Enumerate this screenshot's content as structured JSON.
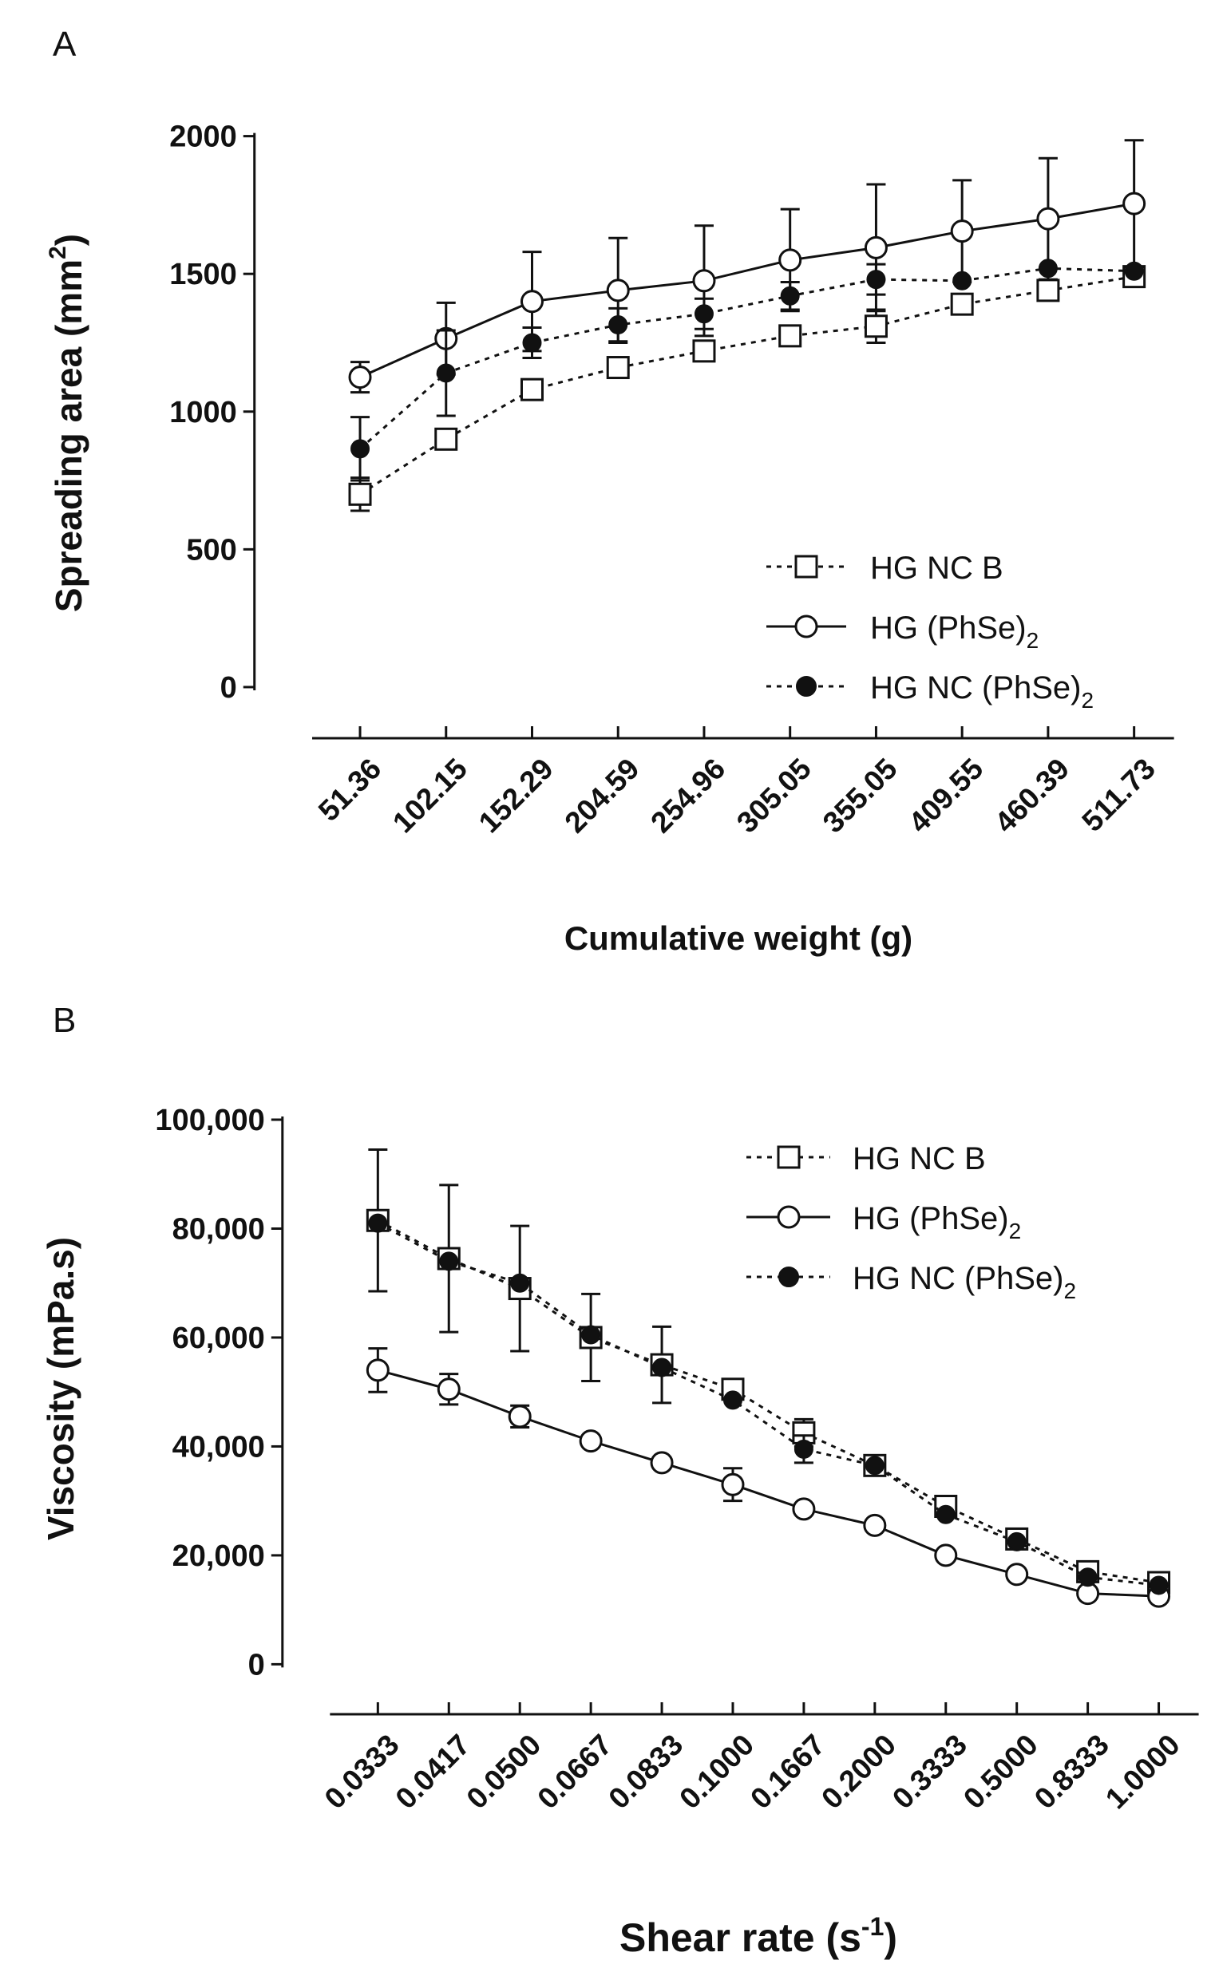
{
  "colors": {
    "ink": "#111111",
    "background": "#ffffff",
    "open_marker": "#ffffff",
    "filled_marker": "#111111"
  },
  "chart_data": [
    {
      "panel": "A",
      "type": "line",
      "title": "",
      "xlabel": "Cumulative weight (g)",
      "ylabel_main": "Spreading area (mm",
      "ylabel_sup": "2",
      "ylabel_end": ")",
      "categories": [
        "51.36",
        "102.15",
        "152.29",
        "204.59",
        "254.96",
        "305.05",
        "355.05",
        "409.55",
        "460.39",
        "511.73"
      ],
      "ylim": [
        0,
        2000
      ],
      "yticks": [
        0,
        500,
        1000,
        1500,
        2000
      ],
      "ytick_labels": [
        "0",
        "500",
        "1000",
        "1500",
        "2000"
      ],
      "legend_position": "bottom-right",
      "series": [
        {
          "name": "HG NC B",
          "label_main": "HG NC B",
          "label_sub": "",
          "marker": "square-open",
          "line": "dotted",
          "values": [
            700,
            900,
            1080,
            1160,
            1220,
            1275,
            1310,
            1390,
            1440,
            1490
          ],
          "errors": [
            60,
            0,
            0,
            35,
            30,
            0,
            60,
            0,
            0,
            0
          ]
        },
        {
          "name": "HG (PhSe)2",
          "label_main": "HG (PhSe)",
          "label_sub": "2",
          "marker": "circle-open",
          "line": "solid",
          "values": [
            1125,
            1265,
            1400,
            1440,
            1475,
            1550,
            1595,
            1655,
            1700,
            1755
          ],
          "errors": [
            55,
            130,
            180,
            190,
            200,
            185,
            230,
            185,
            220,
            230
          ]
        },
        {
          "name": "HG NC (PhSe)2",
          "label_main": "HG NC (PhSe)",
          "label_sub": "2",
          "marker": "circle-filled",
          "line": "dotted",
          "values": [
            865,
            1140,
            1250,
            1315,
            1355,
            1420,
            1480,
            1475,
            1520,
            1510
          ],
          "errors": [
            115,
            155,
            55,
            60,
            55,
            50,
            55,
            0,
            0,
            0
          ]
        }
      ]
    },
    {
      "panel": "B",
      "type": "line",
      "title": "",
      "xlabel_main": "Shear rate (s",
      "xlabel_sup": "-1",
      "xlabel_end": ")",
      "ylabel": "Viscosity (mPa.s)",
      "categories": [
        "0.0333",
        "0.0417",
        "0.0500",
        "0.0667",
        "0.0833",
        "0.1000",
        "0.1667",
        "0.2000",
        "0.3333",
        "0.5000",
        "0.8333",
        "1.0000"
      ],
      "ylim": [
        0,
        100000
      ],
      "yticks": [
        0,
        20000,
        40000,
        60000,
        80000,
        100000
      ],
      "ytick_labels": [
        "0",
        "20,000",
        "40,000",
        "60,000",
        "80,000",
        "100,000"
      ],
      "legend_position": "top-right",
      "series": [
        {
          "name": "HG NC B",
          "label_main": "HG NC B",
          "label_sub": "",
          "marker": "square-open",
          "line": "dotted",
          "values": [
            81500,
            74500,
            69000,
            60000,
            55000,
            50500,
            42500,
            36500,
            29000,
            23000,
            17000,
            15000
          ],
          "errors": [
            13000,
            13500,
            11500,
            8000,
            7000,
            0,
            2500,
            0,
            0,
            0,
            0,
            0
          ]
        },
        {
          "name": "HG (PhSe)2",
          "label_main": "HG (PhSe)",
          "label_sub": "2",
          "marker": "circle-open",
          "line": "solid",
          "values": [
            54000,
            50500,
            45500,
            41000,
            37000,
            33000,
            28500,
            25500,
            20000,
            16500,
            13000,
            12500
          ],
          "errors": [
            4000,
            2800,
            2000,
            0,
            0,
            3000,
            0,
            0,
            0,
            0,
            0,
            0
          ]
        },
        {
          "name": "HG NC (PhSe)2",
          "label_main": "HG NC (PhSe)",
          "label_sub": "2",
          "marker": "circle-filled",
          "line": "dotted",
          "values": [
            81000,
            74000,
            70000,
            60500,
            54500,
            48500,
            39500,
            36500,
            27500,
            22500,
            16000,
            14500
          ],
          "errors": [
            0,
            0,
            0,
            0,
            0,
            0,
            2500,
            0,
            0,
            0,
            0,
            0
          ]
        }
      ]
    }
  ]
}
